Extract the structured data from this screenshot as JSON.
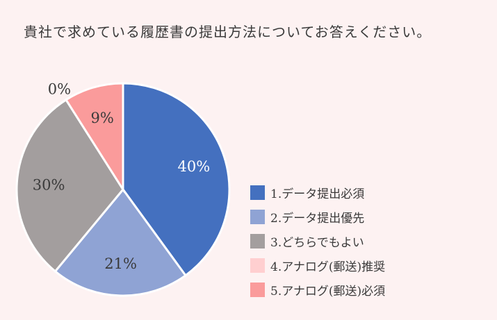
{
  "title": "貴社で求めている履歴書の提出方法についてお答えください。",
  "chart_data": {
    "type": "pie",
    "title": "貴社で求めている履歴書の提出方法についてお答えください。",
    "categories": [
      "1.データ提出必須",
      "2.データ提出優先",
      "3.どちらでもよい",
      "4.アナログ(郵送)推奨",
      "5.アナログ(郵送)必須"
    ],
    "values": [
      40,
      21,
      30,
      0,
      9
    ],
    "labels": [
      "40%",
      "21%",
      "30%",
      "0%",
      "9%"
    ],
    "colors": [
      "#4470bf",
      "#8fa3d4",
      "#a39e9e",
      "#ffcfd0",
      "#fa9b9b"
    ],
    "legend_position": "right"
  }
}
